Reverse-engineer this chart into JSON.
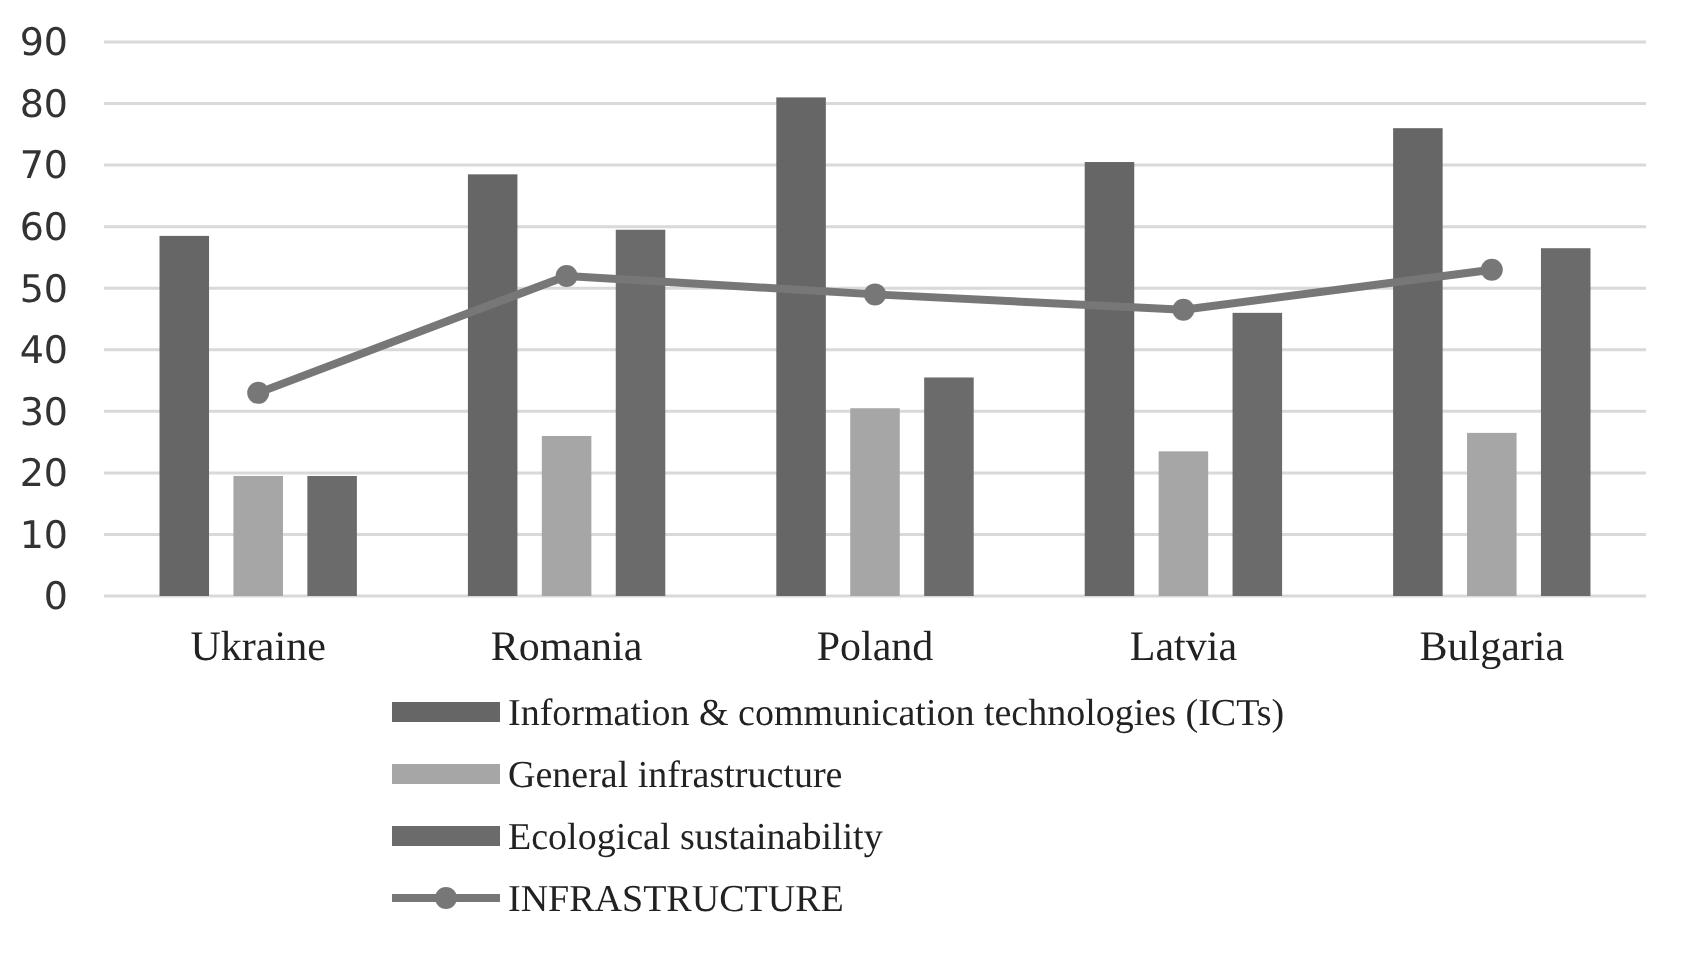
{
  "chart_data": {
    "type": "bar",
    "categories": [
      "Ukraine",
      "Romania",
      "Poland",
      "Latvia",
      "Bulgaria"
    ],
    "series": [
      {
        "name": "Information & communication technologies (ICTs)",
        "color": "#666666",
        "values": [
          58.5,
          68.5,
          81,
          70.5,
          76
        ]
      },
      {
        "name": "General infrastructure",
        "color": "#a6a6a6",
        "values": [
          19.5,
          26,
          30.5,
          23.5,
          26.5
        ]
      },
      {
        "name": "Ecological sustainability",
        "color": "#6b6b6b",
        "values": [
          19.5,
          59.5,
          35.5,
          46,
          56.5
        ]
      },
      {
        "name": "INFRASTRUCTURE",
        "type": "line",
        "color": "#777777",
        "values": [
          33,
          52,
          49,
          46.5,
          53
        ]
      }
    ],
    "ylim": [
      0,
      90
    ],
    "yticks": [
      0,
      10,
      20,
      30,
      40,
      50,
      60,
      70,
      80,
      90
    ],
    "grid": "y",
    "legend": "bottom",
    "marker": "circle",
    "line_style": "solid"
  }
}
